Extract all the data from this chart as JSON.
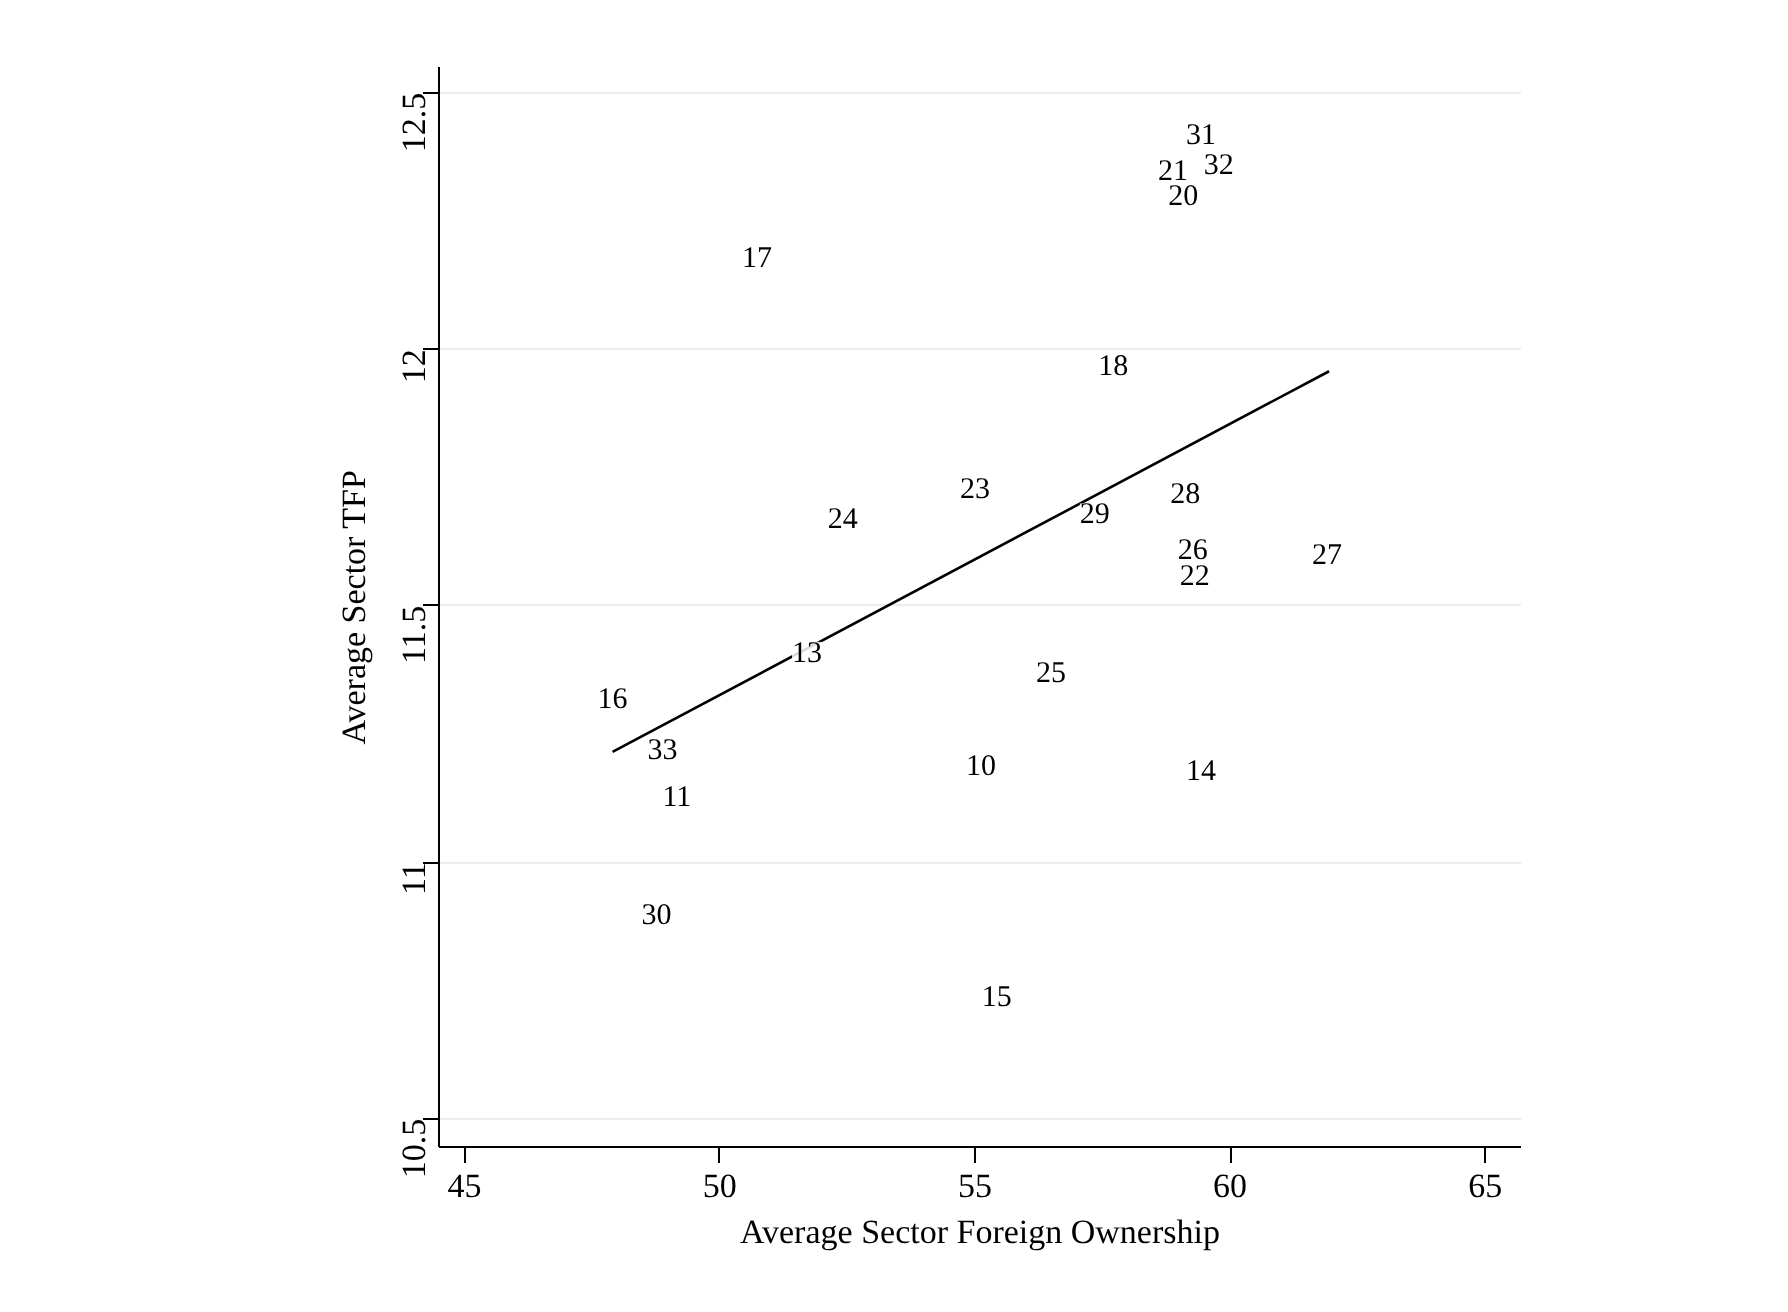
{
  "chart_data": {
    "type": "line",
    "xlabel": "Average Sector Foreign Ownership",
    "ylabel": "Average Sector TFP",
    "xlim": [
      44.5,
      65.7
    ],
    "ylim": [
      10.445,
      12.55
    ],
    "xticks": [
      45,
      50,
      55,
      60,
      65
    ],
    "yticks": [
      10.5,
      11,
      11.5,
      12,
      12.5
    ],
    "grid": "y",
    "marker": "none",
    "series": [
      {
        "color": "#000000",
        "x": [
          47.9,
          61.94
        ],
        "values": [
          11.215,
          11.957
        ]
      }
    ],
    "annotations": [
      {
        "text": "31",
        "x": 59.43,
        "y": 12.42
      },
      {
        "text": "21",
        "x": 58.88,
        "y": 12.35
      },
      {
        "text": "32",
        "x": 59.78,
        "y": 12.36
      },
      {
        "text": "20",
        "x": 59.08,
        "y": 12.3
      },
      {
        "text": "17",
        "x": 50.73,
        "y": 12.18
      },
      {
        "text": "18",
        "x": 57.71,
        "y": 11.97
      },
      {
        "text": "23",
        "x": 55.0,
        "y": 11.73
      },
      {
        "text": "24",
        "x": 52.41,
        "y": 11.67
      },
      {
        "text": "29",
        "x": 57.35,
        "y": 11.68
      },
      {
        "text": "28",
        "x": 59.12,
        "y": 11.72
      },
      {
        "text": "26",
        "x": 59.27,
        "y": 11.61
      },
      {
        "text": "22",
        "x": 59.31,
        "y": 11.56
      },
      {
        "text": "27",
        "x": 61.9,
        "y": 11.6
      },
      {
        "text": "13",
        "x": 51.71,
        "y": 11.41
      },
      {
        "text": "16",
        "x": 47.9,
        "y": 11.32
      },
      {
        "text": "25",
        "x": 56.49,
        "y": 11.37
      },
      {
        "text": "33",
        "x": 48.88,
        "y": 11.22
      },
      {
        "text": "10",
        "x": 55.12,
        "y": 11.19
      },
      {
        "text": "14",
        "x": 59.43,
        "y": 11.18
      },
      {
        "text": "11",
        "x": 49.16,
        "y": 11.13
      },
      {
        "text": "30",
        "x": 48.76,
        "y": 10.9
      },
      {
        "text": "15",
        "x": 55.43,
        "y": 10.74
      }
    ]
  }
}
